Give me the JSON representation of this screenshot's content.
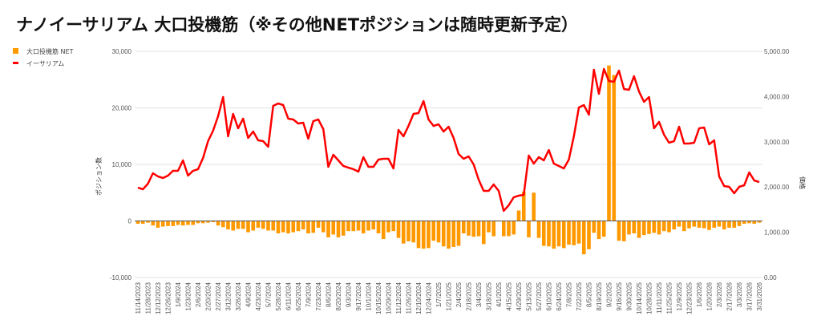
{
  "chart_data": {
    "type": "bar+line",
    "title": "ナノイーサリアム 大口投機筋（※その他NETポジションは随時更新予定）",
    "legend": [
      "大口投機筋 NET",
      "イーサリアム"
    ],
    "legend_position": "top-left",
    "y_left_label": "ポジション数",
    "y_right_label": "価格",
    "y_left_lim": [
      -10000,
      30000
    ],
    "y_right_lim": [
      0,
      5000
    ],
    "y_left_ticks": [
      "30,000",
      "20,000",
      "10,000",
      "0",
      "-10,000"
    ],
    "y_right_ticks": [
      "5,000.00",
      "4,000.00",
      "3,000.00",
      "2,000.00",
      "1,000.00",
      "0.00"
    ],
    "grid": true,
    "colors": {
      "net": "#ff9900",
      "price": "#ff0000",
      "grid": "#e2e2e2"
    },
    "x_tick_labels": [
      "11/14/2023",
      "11/28/2023",
      "12/12/2023",
      "12/26/2023",
      "1/9/2024",
      "1/23/2024",
      "2/6/2024",
      "2/20/2024",
      "2/27/2024",
      "3/12/2024",
      "3/26/2024",
      "4/9/2024",
      "4/23/2024",
      "5/7/2024",
      "5/28/2024",
      "6/11/2024",
      "6/25/2024",
      "7/9/2024",
      "7/23/2024",
      "8/6/2024",
      "8/20/2024",
      "9/3/2024",
      "9/17/2024",
      "10/1/2024",
      "10/15/2024",
      "10/29/2024",
      "11/12/2024",
      "11/26/2024",
      "12/10/2024",
      "12/24/2024",
      "1/7/2025",
      "1/21/2025",
      "2/4/2025",
      "2/18/2025",
      "3/4/2025",
      "3/18/2025",
      "4/1/2025",
      "4/15/2025",
      "4/29/2025",
      "5/13/2025",
      "5/27/2025",
      "6/10/2025",
      "6/24/2025",
      "7/8/2025",
      "7/22/2025",
      "8/5/2025",
      "8/19/2025",
      "9/2/2025",
      "9/16/2025",
      "9/30/2025",
      "10/14/2025",
      "10/28/2025",
      "11/11/2025",
      "11/25/2025",
      "12/9/2025",
      "12/23/2025",
      "1/6/2026",
      "1/20/2026",
      "2/3/2026",
      "2/17/2026",
      "3/3/2026",
      "3/17/2026",
      "3/31/2026"
    ],
    "series": [
      {
        "name": "大口投機筋 NET",
        "type": "bar",
        "axis": "left",
        "values": [
          -500,
          -500,
          -300,
          -800,
          -1200,
          -1000,
          -900,
          -900,
          -700,
          -800,
          -700,
          -700,
          -400,
          -400,
          -300,
          -200,
          -800,
          -1100,
          -1500,
          -1700,
          -1400,
          -1400,
          -2000,
          -1700,
          -1200,
          -1400,
          -1700,
          -1700,
          -2200,
          -2000,
          -2200,
          -2000,
          -1800,
          -1500,
          -2200,
          -2100,
          -1200,
          -2000,
          -2900,
          -2400,
          -2900,
          -2600,
          -1800,
          -1800,
          -1700,
          -2200,
          -1700,
          -1500,
          -2200,
          -3200,
          -2000,
          -1800,
          -3000,
          -4000,
          -3600,
          -3800,
          -4800,
          -4900,
          -4800,
          -3500,
          -3800,
          -4500,
          -4900,
          -4600,
          -4400,
          -2200,
          -2600,
          -2800,
          -2700,
          -4100,
          -2000,
          -2700,
          -100,
          -2700,
          -2700,
          -2400,
          1850,
          5200,
          -2900,
          5000,
          -3000,
          -4400,
          -4500,
          -4900,
          -4500,
          -4800,
          -4200,
          -4300,
          -4000,
          -5900,
          -5000,
          -2100,
          -3200,
          -2800,
          27500,
          25800,
          -3500,
          -3600,
          -2400,
          -2200,
          -3000,
          -2500,
          -2300,
          -2100,
          -2400,
          -1800,
          -2000,
          -1500,
          -1000,
          -1800,
          -1300,
          -1000,
          -1200,
          -1300,
          -1600,
          -1200,
          -1000,
          -1500,
          -1200,
          -1200,
          -900,
          -500,
          -400,
          -500,
          -300
        ]
      },
      {
        "name": "イーサリアム",
        "type": "line",
        "axis": "right",
        "values": [
          1986,
          1950,
          2074,
          2305,
          2234,
          2199,
          2252,
          2358,
          2358,
          2589,
          2252,
          2358,
          2394,
          2642,
          3014,
          3245,
          3564,
          3989,
          3121,
          3617,
          3298,
          3511,
          3085,
          3227,
          3032,
          3014,
          2890,
          3794,
          3847,
          3812,
          3511,
          3493,
          3404,
          3422,
          3067,
          3457,
          3493,
          3280,
          2447,
          2713,
          2589,
          2465,
          2429,
          2394,
          2340,
          2660,
          2447,
          2447,
          2606,
          2624,
          2624,
          2411,
          3262,
          3121,
          3351,
          3617,
          3635,
          3901,
          3493,
          3351,
          3387,
          3227,
          3333,
          3085,
          2730,
          2624,
          2677,
          2500,
          2163,
          1915,
          1915,
          2057,
          1915,
          1472,
          1596,
          1773,
          1809,
          1826,
          2695,
          2518,
          2660,
          2589,
          2819,
          2518,
          2465,
          2411,
          2606,
          3121,
          3759,
          3812,
          3599,
          4592,
          4060,
          4610,
          4344,
          4326,
          4574,
          4167,
          4149,
          4450,
          4113,
          3883,
          3989,
          3298,
          3440,
          3156,
          2979,
          3014,
          3333,
          2961,
          2961,
          2979,
          3298,
          3316,
          2943,
          3032,
          2234,
          2021,
          2004,
          1862,
          2004,
          2039,
          2323,
          2145,
          2110
        ]
      }
    ]
  }
}
